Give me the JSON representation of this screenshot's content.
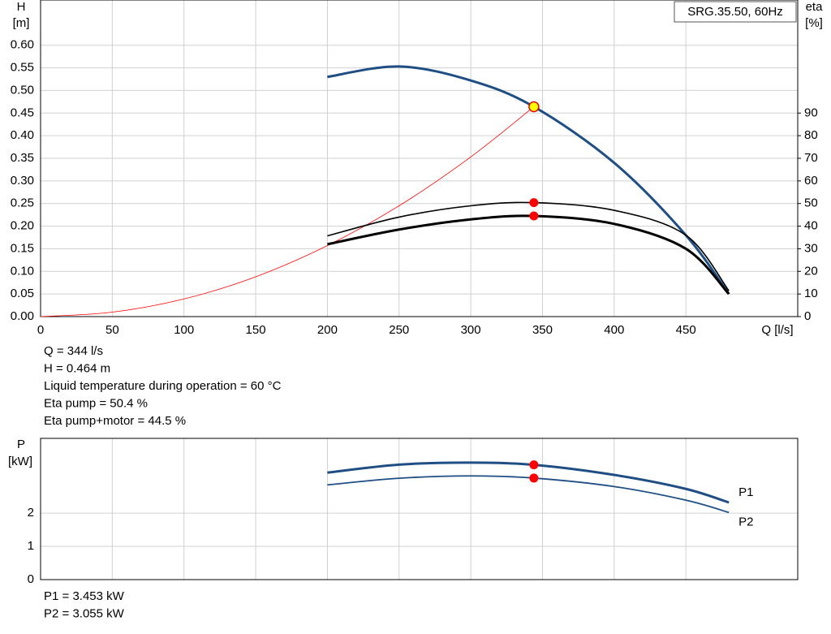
{
  "chart_data": [
    {
      "type": "line",
      "title": "SRG.35.50, 60Hz",
      "y_label": "H",
      "y_unit": "[m]",
      "y2_label": "eta",
      "y2_unit": "[%]",
      "x_label": "Q [l/s]",
      "xlim": [
        0,
        528
      ],
      "ylim": [
        0,
        0.7
      ],
      "y2lim": [
        0,
        140
      ],
      "xticks": [
        0,
        50,
        100,
        150,
        200,
        250,
        300,
        350,
        400,
        450
      ],
      "yticks": [
        {
          "value": 0,
          "label": "0.00"
        },
        {
          "value": 0.05,
          "label": "0.05"
        },
        {
          "value": 0.1,
          "label": "0.10"
        },
        {
          "value": 0.15,
          "label": "0.15"
        },
        {
          "value": 0.2,
          "label": "0.20"
        },
        {
          "value": 0.25,
          "label": "0.25"
        },
        {
          "value": 0.3,
          "label": "0.30"
        },
        {
          "value": 0.35,
          "label": "0.35"
        },
        {
          "value": 0.4,
          "label": "0.40"
        },
        {
          "value": 0.45,
          "label": "0.45"
        },
        {
          "value": 0.5,
          "label": "0.50"
        },
        {
          "value": 0.55,
          "label": "0.55"
        },
        {
          "value": 0.6,
          "label": "0.60"
        }
      ],
      "y2ticks": [
        0,
        10,
        20,
        30,
        40,
        50,
        60,
        70,
        80,
        90
      ],
      "grid": true,
      "x_tick_labels": true,
      "series": [
        {
          "color": "#ff0000",
          "line_width": 0.8,
          "x": [
            0,
            50,
            100,
            150,
            200,
            250,
            300,
            344
          ],
          "values": [
            0,
            0.0098,
            0.039,
            0.088,
            0.157,
            0.245,
            0.353,
            0.464
          ]
        },
        {
          "color": "#1f4e84",
          "line_width": 3,
          "x": [
            200,
            250,
            300,
            344,
            400,
            450,
            480
          ],
          "values": [
            0.53,
            0.553,
            0.522,
            0.464,
            0.34,
            0.18,
            0.05
          ]
        },
        {
          "color": "#000000",
          "line_width": 1.6,
          "axis": "y2",
          "x": [
            200,
            250,
            300,
            344,
            400,
            450,
            480
          ],
          "values": [
            35.7,
            44,
            49,
            50.4,
            47,
            36,
            11.4
          ]
        },
        {
          "color": "#000000",
          "line_width": 3,
          "axis": "y2",
          "x": [
            200,
            250,
            300,
            344,
            400,
            450,
            480
          ],
          "values": [
            32,
            38.5,
            43,
            44.5,
            41,
            30,
            10
          ]
        }
      ],
      "markers": [
        {
          "x": 344,
          "y": 0.464,
          "color": "#ffff00",
          "stroke": "#e8000b"
        },
        {
          "x": 344,
          "y": 50.4,
          "axis": "y2",
          "color": "#ff0000"
        },
        {
          "x": 344,
          "y": 44.5,
          "axis": "y2",
          "color": "#ff0000"
        }
      ],
      "info": [
        "Q = 344 l/s",
        "H = 0.464 m",
        "Liquid temperature during operation = 60 °C",
        "Eta pump = 50.4 %",
        "Eta pump+motor = 44.5 %"
      ]
    },
    {
      "type": "line",
      "y_label": "P",
      "y_unit": "[kW]",
      "xlim": [
        0,
        528
      ],
      "ylim": [
        0,
        4.25
      ],
      "xticks": [
        0,
        50,
        100,
        150,
        200,
        250,
        300,
        350,
        400,
        450
      ],
      "yticks": [
        0,
        1,
        2
      ],
      "grid": true,
      "x_tick_labels": false,
      "series": [
        {
          "name": "P1",
          "color": "#1f4e84",
          "line_width": 3,
          "x": [
            200,
            250,
            300,
            344,
            400,
            450,
            480
          ],
          "values": [
            3.22,
            3.46,
            3.52,
            3.453,
            3.15,
            2.73,
            2.32
          ]
        },
        {
          "name": "P2",
          "color": "#1f4e84",
          "line_width": 1.8,
          "x": [
            200,
            250,
            300,
            344,
            400,
            450,
            480
          ],
          "values": [
            2.85,
            3.05,
            3.12,
            3.055,
            2.8,
            2.39,
            2.02
          ]
        }
      ],
      "markers": [
        {
          "x": 344,
          "y": 3.453,
          "color": "#ff0000"
        },
        {
          "x": 344,
          "y": 3.055,
          "color": "#ff0000"
        }
      ],
      "info": [
        "P1 = 3.453 kW",
        "P2 = 3.055 kW"
      ]
    }
  ]
}
